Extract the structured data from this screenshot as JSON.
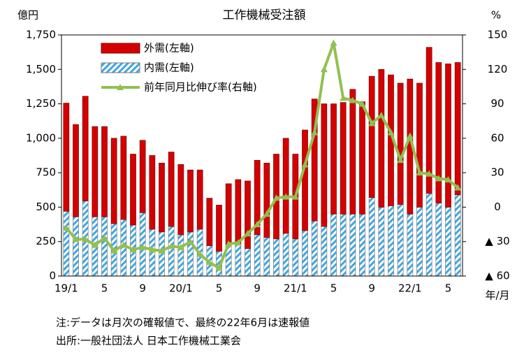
{
  "chart_data": {
    "type": "bar",
    "title": "工作機械受注額",
    "y_unit": "億円",
    "y2_unit": "%",
    "x_label": "年/月",
    "categories": [
      "19/1",
      null,
      null,
      null,
      "5",
      null,
      null,
      null,
      "9",
      null,
      null,
      null,
      "20/1",
      null,
      null,
      null,
      "5",
      null,
      null,
      null,
      "9",
      null,
      null,
      null,
      "21/1",
      null,
      null,
      null,
      "5",
      null,
      null,
      null,
      "9",
      null,
      null,
      null,
      "22/1",
      null,
      null,
      null,
      "5",
      null
    ],
    "series": [
      {
        "name": "外需(左軸)",
        "color": "#d40000",
        "stack": true,
        "values": [
          785,
          670,
          760,
          655,
          655,
          620,
          605,
          515,
          525,
          535,
          500,
          540,
          510,
          450,
          430,
          345,
          335,
          440,
          470,
          490,
          540,
          540,
          615,
          690,
          615,
          730,
          885,
          890,
          800,
          810,
          905,
          815,
          880,
          1000,
          950,
          880,
          980,
          900,
          1060,
          1020,
          1040,
          960
        ]
      },
      {
        "name": "内需(左軸)",
        "color": "#3fa7e0",
        "stack": true,
        "values": [
          470,
          430,
          545,
          430,
          430,
          380,
          410,
          370,
          460,
          340,
          320,
          360,
          300,
          320,
          340,
          220,
          180,
          230,
          230,
          200,
          300,
          280,
          270,
          310,
          270,
          330,
          400,
          360,
          450,
          450,
          450,
          450,
          570,
          500,
          510,
          520,
          450,
          500,
          600,
          530,
          500,
          590
        ]
      },
      {
        "name": "前年同月比伸び率(右軸)",
        "color": "#92c050",
        "type": "line",
        "axis": "y2",
        "values": [
          -18,
          -28,
          -28,
          -33,
          -27,
          -38,
          -33,
          -37,
          -35,
          -37,
          -38,
          -34,
          -35,
          -30,
          -41,
          -48,
          -53,
          -32,
          -31,
          -23,
          -15,
          -6,
          8,
          9,
          9,
          37,
          65,
          120,
          143,
          95,
          93,
          90,
          73,
          80,
          65,
          41,
          62,
          30,
          29,
          25,
          24,
          17
        ]
      }
    ],
    "ylim": [
      0,
      1750
    ],
    "yticks": [
      0,
      250,
      500,
      750,
      {
        "value": 1000,
        "label": "1,000"
      },
      {
        "value": 1250,
        "label": "1,250"
      },
      {
        "value": 1500,
        "label": "1,500"
      },
      {
        "value": 1750,
        "label": "1,750"
      }
    ],
    "y2lim": [
      -60,
      150
    ],
    "y2ticks": [
      {
        "value": -60,
        "label": "▲ 60"
      },
      {
        "value": -30,
        "label": "▲ 30"
      },
      0,
      30,
      60,
      90,
      120,
      150
    ],
    "notes": [
      "注:データは月次の確報値で、最終の22年6月は速報値",
      "出所:一般社団法人 日本工作機械工業会"
    ]
  }
}
